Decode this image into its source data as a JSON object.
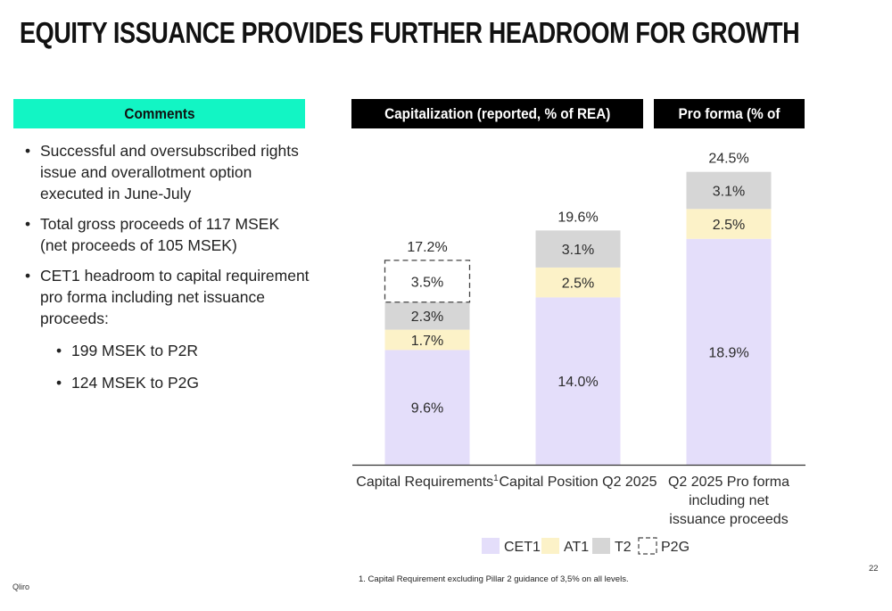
{
  "title": "EQUITY ISSUANCE PROVIDES FURTHER HEADROOM FOR GROWTH",
  "headers": {
    "comments": "Comments",
    "capitalization": "Capitalization (reported, % of REA)",
    "pro_forma": "Pro forma (% of REA)"
  },
  "comments": {
    "bullets": [
      "Successful and oversubscribed rights issue and overallotment option executed in June-July",
      "Total gross proceeds of 117 MSEK (net proceeds of 105 MSEK)",
      "CET1 headroom to capital requirement pro forma including net issuance proceeds:"
    ],
    "sub_bullets": [
      "199 MSEK to P2R",
      "124 MSEK to P2G"
    ]
  },
  "chart_data": {
    "type": "bar",
    "stacked": true,
    "categories": [
      {
        "lines": [
          "Capital Requirements"
        ],
        "sup": "1"
      },
      {
        "lines": [
          "Capital Position Q2 2025"
        ],
        "sup": ""
      },
      {
        "lines": [
          "Q2 2025 Pro forma",
          "including net",
          "issuance proceeds"
        ],
        "sup": ""
      }
    ],
    "series": [
      {
        "name": "CET1",
        "color": "#e4defa",
        "style": "solid",
        "values": [
          9.6,
          14.0,
          18.9
        ],
        "labels": [
          "9.6%",
          "14.0%",
          "18.9%"
        ]
      },
      {
        "name": "AT1",
        "color": "#fcf2c8",
        "style": "solid",
        "values": [
          1.7,
          2.5,
          2.5
        ],
        "labels": [
          "1.7%",
          "2.5%",
          "2.5%"
        ]
      },
      {
        "name": "T2",
        "color": "#d6d6d6",
        "style": "solid",
        "values": [
          2.3,
          3.1,
          3.1
        ],
        "labels": [
          "2.3%",
          "3.1%",
          "3.1%"
        ]
      },
      {
        "name": "P2G",
        "color": "#444444",
        "style": "dashed",
        "values": [
          3.5,
          0,
          0
        ],
        "labels": [
          "3.5%",
          "",
          ""
        ]
      }
    ],
    "totals": [
      "17.2%",
      "19.6%",
      "24.5%"
    ],
    "ylim": [
      0,
      25
    ],
    "grid": false,
    "legend_position": "bottom"
  },
  "footnote": "1. Capital Requirement excluding Pillar 2 guidance of 3,5% on all levels.",
  "page_number": "22",
  "brand": "Qliro"
}
